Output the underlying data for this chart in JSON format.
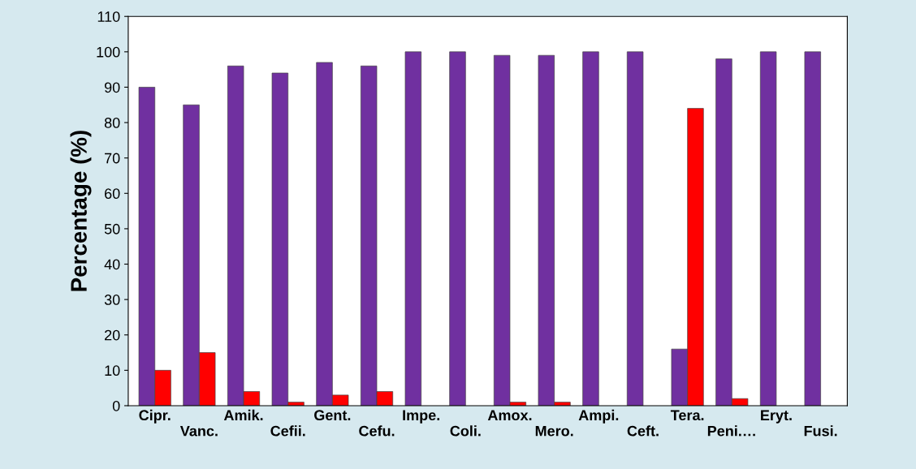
{
  "chart_data": {
    "type": "bar",
    "ylabel": "Percentage (%)",
    "categories": [
      "Cipr.",
      "Vanc.",
      "Amik.",
      "Cefii.",
      "Gent.",
      "Cefu.",
      "Impe.",
      "Coli.",
      "Amox.",
      "Mero.",
      "Ampi.",
      "Ceft.",
      "Tera.",
      "Peni.…",
      "Eryt.",
      "Fusi."
    ],
    "series": [
      {
        "color": "#7030a0",
        "values": [
          90,
          85,
          96,
          94,
          97,
          96,
          100,
          100,
          99,
          99,
          100,
          100,
          16,
          98,
          100,
          100
        ]
      },
      {
        "color": "#ff0000",
        "values": [
          10,
          15,
          4,
          1,
          3,
          4,
          null,
          null,
          1,
          1,
          null,
          null,
          84,
          2,
          null,
          null
        ]
      }
    ],
    "ylim": [
      0,
      110
    ],
    "yticks": [
      0,
      10,
      20,
      30,
      40,
      50,
      60,
      70,
      80,
      90,
      100,
      110
    ],
    "grid": false
  }
}
